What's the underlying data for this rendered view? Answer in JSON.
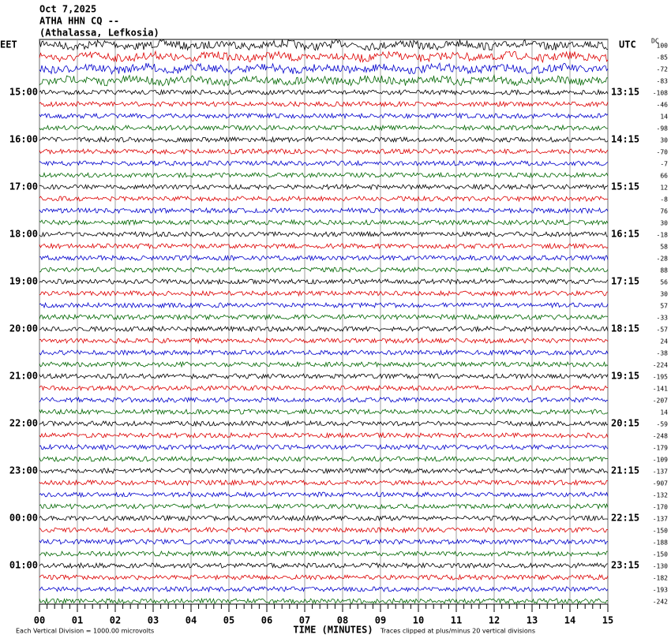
{
  "header": {
    "date": "Oct 7,2025",
    "station": "ATHA HHN CQ --",
    "location": "(Athalassa, Lefkosia)",
    "left_zone": "EET",
    "right_zone": "UTC",
    "dc_label": "DC"
  },
  "left_labels": [
    "15:00",
    "16:00",
    "17:00",
    "18:00",
    "19:00",
    "20:00",
    "21:00",
    "22:00",
    "23:00",
    "00:00",
    "01:00"
  ],
  "right_labels": [
    "13:15",
    "14:15",
    "15:15",
    "16:15",
    "17:15",
    "18:15",
    "19:15",
    "20:15",
    "21:15",
    "22:15",
    "23:15"
  ],
  "dc_offsets": [
    100,
    -85,
    -72,
    -83,
    -108,
    -46,
    14,
    -98,
    30,
    -70,
    -7,
    66,
    12,
    -8,
    76,
    30,
    -18,
    58,
    -28,
    88,
    56,
    30,
    57,
    -33,
    -57,
    24,
    -38,
    -224,
    -195,
    -141,
    -207,
    14,
    -59,
    -248,
    -179,
    -109,
    -137,
    -907,
    -132,
    -170,
    -137,
    -150,
    -188,
    -150,
    -130,
    -182,
    -193,
    -242
  ],
  "x_ticks": [
    "00",
    "01",
    "02",
    "03",
    "04",
    "05",
    "06",
    "07",
    "08",
    "09",
    "10",
    "11",
    "12",
    "13",
    "14",
    "15"
  ],
  "footer": {
    "scale": "Each Vertical Division = 1000.00 microvolts",
    "axis_title": "TIME (MINUTES)",
    "clip_note": "Traces clipped at plus/minus 20 vertical divisions"
  }
}
